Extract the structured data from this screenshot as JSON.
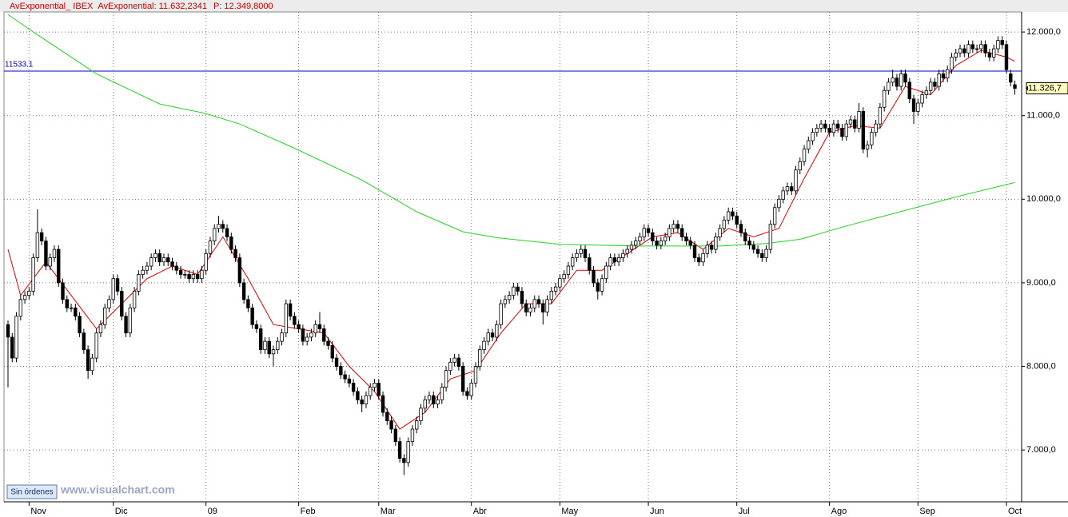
{
  "chart_data": {
    "type": "candlestick",
    "header": [
      "AvExponential_ IBEX",
      "AvExponential: 11.632,2341",
      "P: 12.349,8000"
    ],
    "button": "Sin órdenes",
    "watermark": "www.visualchart.com",
    "ylim": [
      6380,
      12240
    ],
    "yticks": [
      {
        "value": 7000,
        "label": "7.000,0"
      },
      {
        "value": 8000,
        "label": "8.000,0"
      },
      {
        "value": 9000,
        "label": "9.000,0"
      },
      {
        "value": 10000,
        "label": "10.000,0"
      },
      {
        "value": 11000,
        "label": "11.000,0"
      },
      {
        "value": 12000,
        "label": "12.000,0"
      }
    ],
    "xticks": [
      {
        "value": 5,
        "label": "Nov"
      },
      {
        "value": 25,
        "label": "Dic"
      },
      {
        "value": 47,
        "label": "09"
      },
      {
        "value": 69,
        "label": "Feb"
      },
      {
        "value": 88,
        "label": "Mar"
      },
      {
        "value": 110,
        "label": "Abr"
      },
      {
        "value": 131,
        "label": "May"
      },
      {
        "value": 152,
        "label": "Jun"
      },
      {
        "value": 173,
        "label": "Jul"
      },
      {
        "value": 195,
        "label": "Ago"
      },
      {
        "value": 216,
        "label": "Sep"
      },
      {
        "value": 237,
        "label": "Oct"
      }
    ],
    "grid": true,
    "hline": {
      "value": 11533.1,
      "color": "#0000c8"
    },
    "last_price": {
      "value": 11326.7,
      "label": "11.326,7"
    },
    "up_color": "#ffffff",
    "down_color": "#000000",
    "open": [
      8500,
      8350,
      8100,
      8600,
      8800,
      8850,
      8900,
      9300,
      9600,
      9500,
      9200,
      9300,
      9400,
      9000,
      8800,
      8700,
      8700,
      8600,
      8400,
      8200,
      7950,
      8100,
      8400,
      8500,
      8700,
      8800,
      9050,
      8900,
      8600,
      8400,
      8700,
      8900,
      9100,
      9150,
      9200,
      9300,
      9350,
      9250,
      9300,
      9250,
      9200,
      9150,
      9100,
      9100,
      9050,
      9100,
      9050,
      9150,
      9350,
      9500,
      9650,
      9700,
      9650,
      9550,
      9400,
      9300,
      9000,
      8800,
      8700,
      8500,
      8450,
      8200,
      8300,
      8150,
      8200,
      8300,
      8400,
      8750,
      8600,
      8500,
      8450,
      8300,
      8350,
      8400,
      8500,
      8450,
      8300,
      8250,
      8100,
      8000,
      7900,
      7850,
      7800,
      7700,
      7600,
      7550,
      7650,
      7750,
      7800,
      7650,
      7450,
      7350,
      7250,
      7100,
      6900,
      6850,
      7100,
      7250,
      7350,
      7500,
      7600,
      7650,
      7550,
      7600,
      7750,
      7950,
      8050,
      8100,
      8000,
      7700,
      7650,
      7800,
      8000,
      8200,
      8300,
      8400,
      8350,
      8500,
      8750,
      8800,
      8850,
      8950,
      8900,
      8750,
      8650,
      8700,
      8800,
      8750,
      8650,
      8800,
      8900,
      8950,
      9050,
      9100,
      9200,
      9300,
      9350,
      9400,
      9300,
      9150,
      9000,
      8900,
      9050,
      9200,
      9300,
      9250,
      9300,
      9350,
      9400,
      9450,
      9500,
      9550,
      9650,
      9600,
      9500,
      9450,
      9500,
      9550,
      9650,
      9700,
      9650,
      9550,
      9500,
      9450,
      9300,
      9250,
      9350,
      9450,
      9400,
      9550,
      9650,
      9750,
      9850,
      9800,
      9700,
      9600,
      9500,
      9450,
      9400,
      9350,
      9300,
      9400,
      9700,
      9900,
      10000,
      10100,
      10150,
      10100,
      10350,
      10450,
      10600,
      10700,
      10800,
      10850,
      10900,
      10850,
      10800,
      10900,
      10850,
      10750,
      10900,
      10950,
      10850,
      11050,
      10600,
      10650,
      10800,
      10900,
      11100,
      11300,
      11400,
      11450,
      11350,
      11500,
      11400,
      11200,
      11050,
      11150,
      11250,
      11300,
      11400,
      11350,
      11500,
      11450,
      11550,
      11700,
      11750,
      11800,
      11750,
      11850,
      11800,
      11800,
      11850,
      11750,
      11700,
      11800,
      11900,
      11850,
      11500,
      11370
    ],
    "high": [
      8550,
      8400,
      8650,
      8850,
      8900,
      8950,
      9350,
      9880,
      9650,
      9550,
      9350,
      9450,
      9450,
      9050,
      8850,
      8750,
      8750,
      8650,
      8450,
      8250,
      8150,
      8450,
      8550,
      8750,
      8850,
      9100,
      9100,
      8950,
      8650,
      8750,
      8950,
      9150,
      9200,
      9250,
      9350,
      9400,
      9400,
      9350,
      9350,
      9300,
      9250,
      9200,
      9150,
      9150,
      9150,
      9150,
      9200,
      9400,
      9550,
      9700,
      9800,
      9750,
      9700,
      9600,
      9450,
      9350,
      9050,
      8850,
      8750,
      8550,
      8500,
      8350,
      8350,
      8250,
      8350,
      8450,
      8800,
      8800,
      8650,
      8550,
      8500,
      8400,
      8450,
      8550,
      8650,
      8500,
      8350,
      8300,
      8150,
      8050,
      7950,
      7900,
      7850,
      7750,
      7650,
      7700,
      7800,
      7850,
      7850,
      7700,
      7500,
      7400,
      7300,
      7150,
      6950,
      7150,
      7300,
      7400,
      7550,
      7650,
      7700,
      7700,
      7650,
      7800,
      8000,
      8100,
      8150,
      8150,
      8050,
      7750,
      7850,
      8050,
      8250,
      8350,
      8450,
      8450,
      8550,
      8800,
      8850,
      8900,
      9000,
      9000,
      8950,
      8800,
      8750,
      8850,
      8850,
      8800,
      8850,
      8950,
      9000,
      9100,
      9150,
      9250,
      9350,
      9400,
      9450,
      9450,
      9350,
      9200,
      9050,
      9100,
      9250,
      9350,
      9350,
      9350,
      9400,
      9450,
      9500,
      9550,
      9600,
      9700,
      9700,
      9650,
      9550,
      9550,
      9600,
      9700,
      9750,
      9750,
      9700,
      9600,
      9550,
      9500,
      9350,
      9400,
      9500,
      9500,
      9600,
      9700,
      9800,
      9900,
      9900,
      9850,
      9750,
      9650,
      9550,
      9500,
      9450,
      9400,
      9450,
      9750,
      9950,
      10050,
      10150,
      10200,
      10200,
      10400,
      10500,
      10650,
      10750,
      10850,
      10900,
      10950,
      10950,
      10900,
      10950,
      10950,
      10900,
      10950,
      11000,
      11000,
      11150,
      11100,
      10700,
      10850,
      10950,
      11150,
      11350,
      11450,
      11550,
      11500,
      11550,
      11550,
      11450,
      11250,
      11200,
      11300,
      11350,
      11450,
      11450,
      11550,
      11550,
      11600,
      11750,
      11800,
      11850,
      11850,
      11900,
      11900,
      11850,
      11900,
      11900,
      11800,
      11850,
      11950,
      11950,
      11900,
      11550,
      11420
    ],
    "low": [
      7750,
      8050,
      8050,
      8550,
      8750,
      8800,
      8850,
      9250,
      9450,
      9150,
      9150,
      9250,
      8950,
      8750,
      8650,
      8650,
      8550,
      8350,
      8150,
      7850,
      7900,
      8050,
      8350,
      8450,
      8650,
      8750,
      8850,
      8550,
      8350,
      8350,
      8650,
      8850,
      9050,
      9100,
      9150,
      9250,
      9200,
      9200,
      9200,
      9150,
      9100,
      9050,
      9050,
      9000,
      9000,
      9000,
      9000,
      9100,
      9300,
      9450,
      9600,
      9600,
      9500,
      9350,
      9250,
      8950,
      8750,
      8650,
      8450,
      8400,
      8150,
      8150,
      8100,
      8000,
      8150,
      8250,
      8350,
      8550,
      8450,
      8400,
      8250,
      8250,
      8300,
      8350,
      8400,
      8250,
      8200,
      8050,
      7950,
      7850,
      7800,
      7750,
      7650,
      7550,
      7450,
      7500,
      7600,
      7700,
      7600,
      7400,
      7300,
      7200,
      7050,
      6850,
      6700,
      6800,
      7050,
      7200,
      7300,
      7450,
      7550,
      7500,
      7500,
      7550,
      7700,
      7900,
      8000,
      7950,
      7650,
      7600,
      7600,
      7750,
      7950,
      8150,
      8250,
      8300,
      8300,
      8450,
      8700,
      8750,
      8800,
      8850,
      8700,
      8600,
      8600,
      8650,
      8700,
      8500,
      8600,
      8750,
      8850,
      8900,
      9000,
      9050,
      9150,
      9250,
      9300,
      9250,
      9100,
      8950,
      8800,
      8850,
      9000,
      9150,
      9200,
      9200,
      9250,
      9300,
      9350,
      9400,
      9450,
      9500,
      9550,
      9450,
      9400,
      9400,
      9450,
      9500,
      9600,
      9600,
      9500,
      9450,
      9400,
      9250,
      9200,
      9200,
      9300,
      9350,
      9350,
      9500,
      9600,
      9700,
      9750,
      9650,
      9550,
      9450,
      9400,
      9350,
      9300,
      9250,
      9250,
      9350,
      9650,
      9850,
      9950,
      10050,
      10050,
      10050,
      10300,
      10400,
      10550,
      10650,
      10750,
      10800,
      10800,
      10750,
      10750,
      10800,
      10700,
      10700,
      10850,
      10800,
      10800,
      10550,
      10500,
      10600,
      10750,
      10850,
      11050,
      11250,
      11350,
      11300,
      11300,
      11350,
      11150,
      10900,
      11000,
      11100,
      11200,
      11250,
      11300,
      11300,
      11400,
      11400,
      11500,
      11650,
      11700,
      11700,
      11700,
      11750,
      11750,
      11750,
      11700,
      11650,
      11650,
      11750,
      11800,
      11500,
      11350,
      11250
    ],
    "close": [
      8350,
      8100,
      8600,
      8800,
      8850,
      8900,
      9300,
      9600,
      9500,
      9200,
      9300,
      9400,
      9000,
      8800,
      8700,
      8700,
      8600,
      8400,
      8200,
      7950,
      8100,
      8400,
      8500,
      8700,
      8800,
      9050,
      8900,
      8600,
      8400,
      8700,
      8900,
      9100,
      9150,
      9200,
      9300,
      9350,
      9250,
      9300,
      9250,
      9200,
      9150,
      9100,
      9100,
      9050,
      9100,
      9050,
      9150,
      9350,
      9500,
      9650,
      9700,
      9650,
      9550,
      9400,
      9300,
      9000,
      8800,
      8700,
      8500,
      8450,
      8200,
      8300,
      8150,
      8200,
      8300,
      8400,
      8750,
      8600,
      8500,
      8450,
      8300,
      8350,
      8400,
      8500,
      8450,
      8300,
      8250,
      8100,
      8000,
      7900,
      7850,
      7800,
      7700,
      7600,
      7550,
      7650,
      7750,
      7800,
      7650,
      7450,
      7350,
      7250,
      7100,
      6900,
      6850,
      7100,
      7250,
      7350,
      7500,
      7600,
      7650,
      7550,
      7600,
      7750,
      7950,
      8050,
      8100,
      8000,
      7700,
      7650,
      7800,
      8000,
      8200,
      8300,
      8400,
      8350,
      8500,
      8750,
      8800,
      8850,
      8950,
      8900,
      8750,
      8650,
      8700,
      8800,
      8750,
      8650,
      8800,
      8900,
      8950,
      9050,
      9100,
      9200,
      9300,
      9350,
      9400,
      9300,
      9150,
      9000,
      8900,
      9050,
      9200,
      9300,
      9250,
      9300,
      9350,
      9400,
      9450,
      9500,
      9550,
      9650,
      9600,
      9500,
      9450,
      9500,
      9550,
      9650,
      9700,
      9650,
      9550,
      9500,
      9450,
      9300,
      9250,
      9350,
      9450,
      9400,
      9550,
      9650,
      9750,
      9850,
      9800,
      9700,
      9600,
      9500,
      9450,
      9400,
      9350,
      9300,
      9400,
      9700,
      9900,
      10000,
      10100,
      10150,
      10100,
      10350,
      10450,
      10600,
      10700,
      10800,
      10850,
      10900,
      10850,
      10800,
      10900,
      10850,
      10750,
      10900,
      10950,
      10850,
      11050,
      10600,
      10650,
      10800,
      10900,
      11100,
      11300,
      11400,
      11450,
      11350,
      11500,
      11400,
      11200,
      11050,
      11150,
      11250,
      11300,
      11400,
      11350,
      11500,
      11450,
      11550,
      11700,
      11750,
      11800,
      11750,
      11850,
      11800,
      11800,
      11850,
      11750,
      11700,
      11800,
      11900,
      11850,
      11550,
      11400,
      11326.7
    ],
    "series": [
      {
        "color": "#e00000",
        "x": [
          0,
          3,
          9,
          15,
          21,
          27,
          33,
          39,
          45,
          51,
          57,
          63,
          69,
          75,
          81,
          87,
          93,
          99,
          105,
          111,
          117,
          123,
          129,
          135,
          141,
          147,
          153,
          159,
          165,
          171,
          177,
          183,
          189,
          195,
          201,
          207,
          213,
          219,
          225,
          231,
          237,
          239
        ],
        "values": [
          9400,
          8850,
          9250,
          8850,
          8450,
          8750,
          9050,
          9200,
          9100,
          9550,
          9050,
          8500,
          8450,
          8400,
          8000,
          7700,
          7250,
          7450,
          7850,
          7950,
          8400,
          8750,
          8750,
          9150,
          9150,
          9350,
          9550,
          9600,
          9400,
          9650,
          9550,
          9650,
          10250,
          10800,
          10880,
          10850,
          11350,
          11250,
          11600,
          11780,
          11700,
          11650
        ]
      },
      {
        "color": "#22d022",
        "x": [
          0,
          6,
          21,
          36,
          47,
          55,
          68,
          84,
          97,
          108,
          116,
          131,
          150,
          169,
          180,
          188,
          199,
          214,
          226,
          239
        ],
        "values": [
          12210,
          12000,
          11500,
          11140,
          11025,
          10900,
          10610,
          10230,
          9850,
          9610,
          9540,
          9460,
          9440,
          9440,
          9470,
          9520,
          9680,
          9880,
          10040,
          10200
        ]
      }
    ]
  }
}
